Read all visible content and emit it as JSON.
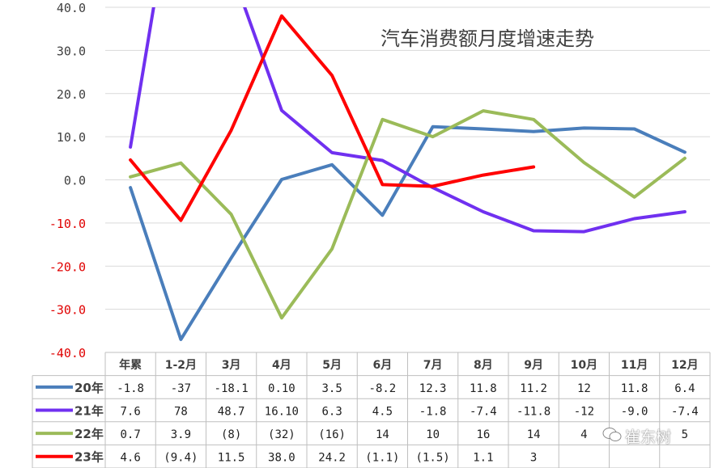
{
  "title": "汽车消费额月度增速走势",
  "watermark": "崔东树",
  "chart_data": {
    "type": "line",
    "title": "汽车消费额月度增速走势",
    "categories": [
      "年累",
      "1-2月",
      "3月",
      "4月",
      "5月",
      "6月",
      "7月",
      "8月",
      "9月",
      "10月",
      "11月",
      "12月"
    ],
    "ylim": [
      -40,
      40
    ],
    "yticks": [
      "40.0",
      "30.0",
      "20.0",
      "10.0",
      "0.0",
      "-10.0",
      "-20.0",
      "-30.0",
      "-40.0"
    ],
    "grid": true,
    "legend": "table-below",
    "series": [
      {
        "name": "20年",
        "color": "#4A7EBB",
        "values": [
          -1.8,
          -37,
          -18.1,
          0.1,
          3.5,
          -8.2,
          12.3,
          11.8,
          11.2,
          12,
          11.8,
          6.4
        ],
        "labels": [
          "-1.8",
          "-37",
          "-18.1",
          "0.10",
          "3.5",
          "-8.2",
          "12.3",
          "11.8",
          "11.2",
          "12",
          "11.8",
          "6.4"
        ]
      },
      {
        "name": "21年",
        "color": "#7030F0",
        "values": [
          7.6,
          78,
          48.7,
          16.1,
          6.3,
          4.5,
          -1.8,
          -7.4,
          -11.8,
          -12,
          -9.0,
          -7.4
        ],
        "labels": [
          "7.6",
          "78",
          "48.7",
          "16.10",
          "6.3",
          "4.5",
          "-1.8",
          "-7.4",
          "-11.8",
          "-12",
          "-9.0",
          "-7.4"
        ]
      },
      {
        "name": "22年",
        "color": "#9BBB59",
        "values": [
          0.7,
          3.9,
          -8,
          -32,
          -16,
          14,
          10,
          16,
          14,
          4,
          -4,
          5
        ],
        "labels": [
          "0.7",
          "3.9",
          "(8)",
          "(32)",
          "(16)",
          "14",
          "10",
          "16",
          "14",
          "4",
          "",
          "5"
        ]
      },
      {
        "name": "23年",
        "color": "#FF0000",
        "values": [
          4.6,
          -9.4,
          11.5,
          38.0,
          24.2,
          -1.1,
          -1.5,
          1.1,
          3,
          null,
          null,
          null
        ],
        "labels": [
          "4.6",
          "(9.4)",
          "11.5",
          "38.0",
          "24.2",
          "(1.1)",
          "(1.5)",
          "1.1",
          "3",
          "",
          "",
          ""
        ]
      }
    ]
  }
}
